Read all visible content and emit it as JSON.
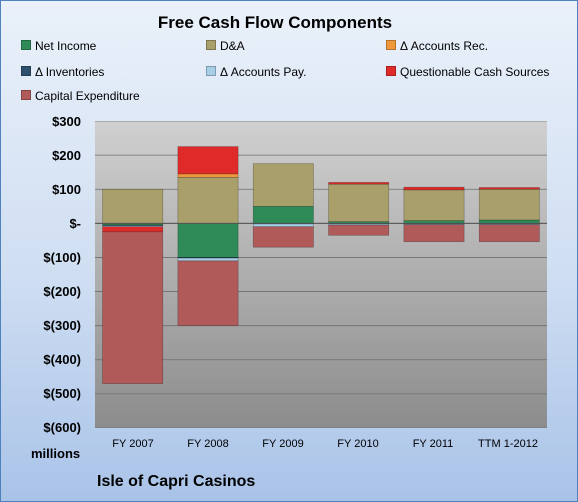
{
  "chart_data": {
    "type": "bar",
    "stacked": true,
    "title": "Free Cash Flow Components",
    "ylabel": "millions",
    "ylim": [
      -600,
      300
    ],
    "yticks": [
      "$300",
      "$200",
      "$100",
      "$-",
      "$(100)",
      "$(200)",
      "$(300)",
      "$(400)",
      "$(500)",
      "$(600)"
    ],
    "grid": true,
    "legend_position": "top",
    "categories": [
      "FY 2007",
      "FY 2008",
      "FY 2009",
      "FY 2010",
      "FY 2011",
      "TTM 1-2012"
    ],
    "series": [
      {
        "name": "Net Income",
        "color": "#2e8b57",
        "values": [
          -5,
          -100,
          50,
          5,
          8,
          10
        ]
      },
      {
        "name": "D&A",
        "color": "#a99f6a",
        "values": [
          100,
          135,
          125,
          110,
          90,
          90
        ]
      },
      {
        "name": "Δ Accounts Rec.",
        "color": "#f0983c",
        "values": [
          0,
          10,
          0,
          0,
          0,
          0
        ]
      },
      {
        "name": "Δ Inventories",
        "color": "#2f4f6f",
        "values": [
          -2,
          -2,
          -2,
          -2,
          -2,
          -2
        ]
      },
      {
        "name": "Δ Accounts Pay.",
        "color": "#a8cfe8",
        "values": [
          -3,
          -8,
          -8,
          -3,
          -2,
          -2
        ]
      },
      {
        "name": "Questionable Cash Sources",
        "color": "#e02a2a",
        "values": [
          -15,
          80,
          0,
          5,
          8,
          5
        ]
      },
      {
        "name": "Capital Expenditure",
        "color": "#b05a5a",
        "values": [
          -445,
          -190,
          -60,
          -30,
          -50,
          -50
        ]
      }
    ]
  },
  "footer": {
    "company": "Isle of Capri Casinos"
  }
}
